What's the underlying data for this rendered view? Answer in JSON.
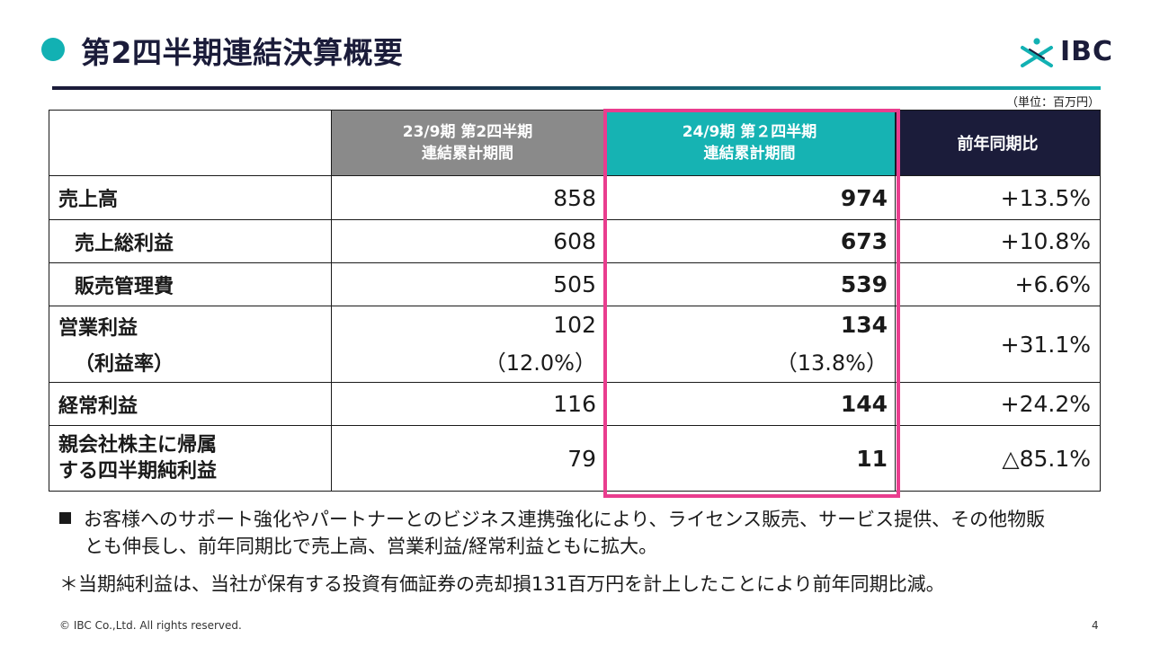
{
  "header": {
    "title": "第2四半期連結決算概要",
    "logo_text": "IBC",
    "unit_note": "（単位：百万円）"
  },
  "colors": {
    "accent_teal": "#12b1b3",
    "navy": "#1b1c3a",
    "gray_header": "#8a8a8a",
    "highlight_pink": "#e93d8e"
  },
  "icons": [
    "ibc-logo-icon"
  ],
  "table": {
    "columns": {
      "prev_line1": "23/9期 第2四半期",
      "prev_line2": "連結累計期間",
      "curr_line1": "24/9期 第２四半期",
      "curr_line2": "連結累計期間",
      "yoy": "前年同期比"
    },
    "rows": [
      {
        "label": "売上高",
        "prev": "858",
        "curr": "974",
        "yoy": "+13.5%"
      },
      {
        "label": "売上総利益",
        "prev": "608",
        "curr": "673",
        "yoy": "+10.8%"
      },
      {
        "label": "販売管理費",
        "prev": "505",
        "curr": "539",
        "yoy": "+6.6%"
      },
      {
        "label": "営業利益",
        "sub_label": "（利益率）",
        "prev": "102",
        "prev_sub": "（12.0%）",
        "curr": "134",
        "curr_sub": "（13.8%）",
        "yoy": "+31.1%"
      },
      {
        "label": "経常利益",
        "prev": "116",
        "curr": "144",
        "yoy": "+24.2%"
      },
      {
        "label_line1": "親会社株主に帰属",
        "label_line2": "する四半期純利益",
        "prev": "79",
        "curr": "11",
        "yoy": "△85.1%"
      }
    ]
  },
  "notes": {
    "bullet_line1": "お客様へのサポート強化やパートナーとのビジネス連携強化により、ライセンス販売、サービス提供、その他物販",
    "bullet_line2": "とも伸長し、前年同期比で売上高、営業利益/経常利益ともに拡大。",
    "asterisk_note": "＊当期純利益は、当社が保有する投資有価証券の売却損131百万円を計上したことにより前年同期比減。"
  },
  "footer": {
    "copyright": "© IBC Co.,Ltd. All rights reserved.",
    "page_number": "4"
  }
}
